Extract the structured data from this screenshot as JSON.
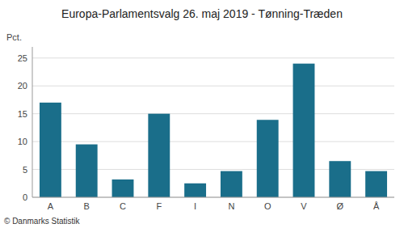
{
  "chart_data": {
    "type": "bar",
    "title": "Europa-Parlamentsvalg 26. maj 2019 - Tønning-Træden",
    "ylabel": "Pct.",
    "footer": "© Danmarks Statistik",
    "categories": [
      "A",
      "B",
      "C",
      "F",
      "I",
      "N",
      "O",
      "V",
      "Ø",
      "Å"
    ],
    "values": [
      17.0,
      9.5,
      3.2,
      15.0,
      2.5,
      4.7,
      13.9,
      24.0,
      6.5,
      4.7
    ],
    "color": "#1a6e8a",
    "ylim": [
      0,
      27
    ],
    "yticks": [
      0,
      5,
      10,
      15,
      20,
      25
    ],
    "grid": true
  }
}
